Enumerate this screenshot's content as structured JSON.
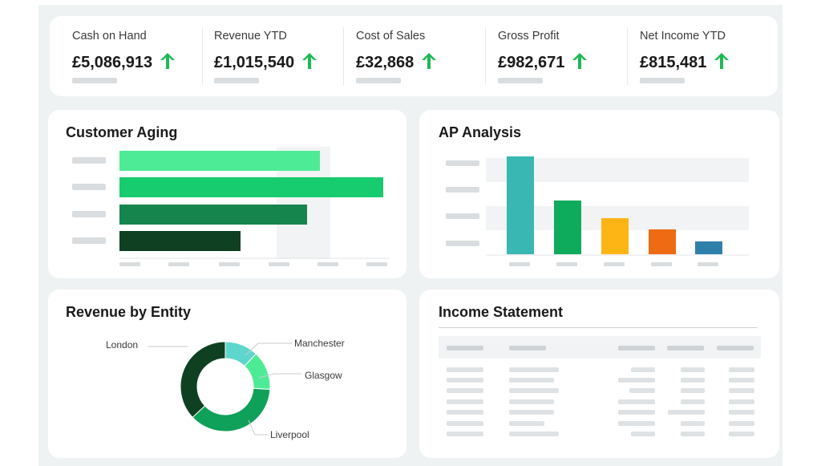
{
  "kpis": [
    {
      "label": "Cash on Hand",
      "value": "£5,086,913",
      "trend": "up"
    },
    {
      "label": "Revenue YTD",
      "value": "£1,015,540",
      "trend": "up"
    },
    {
      "label": "Cost of Sales",
      "value": "£32,868",
      "trend": "up"
    },
    {
      "label": "Gross Profit",
      "value": "£982,671",
      "trend": "up"
    },
    {
      "label": "Net Income YTD",
      "value": "£815,481",
      "trend": "up"
    }
  ],
  "colors": {
    "trend_up": "#1db954",
    "green_light": "#4eeb96",
    "green_mid": "#17cc6e",
    "green_dark": "#16854d",
    "green_darkest": "#0f4022",
    "teal": "#39b7b2",
    "green": "#0fab5c",
    "amber": "#fdb515",
    "orange": "#ee6b13",
    "blue": "#2f7fab",
    "placeholder": "#d9dddf"
  },
  "customer_aging": {
    "title": "Customer Aging",
    "chart_data": {
      "type": "bar",
      "orientation": "horizontal",
      "categories": [
        "",
        "",
        "",
        ""
      ],
      "values": [
        0.76,
        1.0,
        0.71,
        0.46
      ],
      "colors": [
        "#4eeb96",
        "#17cc6e",
        "#16854d",
        "#0f4022"
      ],
      "value_scale": "relative (no axis labels shown)"
    }
  },
  "ap_analysis": {
    "title": "AP Analysis",
    "chart_data": {
      "type": "bar",
      "orientation": "vertical",
      "categories": [
        "",
        "",
        "",
        "",
        ""
      ],
      "values": [
        1.0,
        0.55,
        0.37,
        0.25,
        0.13
      ],
      "colors": [
        "#39b7b2",
        "#0fab5c",
        "#fdb515",
        "#ee6b13",
        "#2f7fab"
      ],
      "value_scale": "relative (no axis labels shown)"
    }
  },
  "revenue_by_entity": {
    "title": "Revenue by Entity",
    "chart_data": {
      "type": "pie",
      "style": "donut",
      "series": [
        {
          "name": "Manchester",
          "value": 0.12,
          "color": "#5ed6cb"
        },
        {
          "name": "Glasgow",
          "value": 0.14,
          "color": "#4eeb96"
        },
        {
          "name": "Liverpool",
          "value": 0.37,
          "color": "#0fa05a"
        },
        {
          "name": "London",
          "value": 0.37,
          "color": "#0f4022"
        }
      ]
    }
  },
  "income_statement": {
    "title": "Income Statement"
  }
}
